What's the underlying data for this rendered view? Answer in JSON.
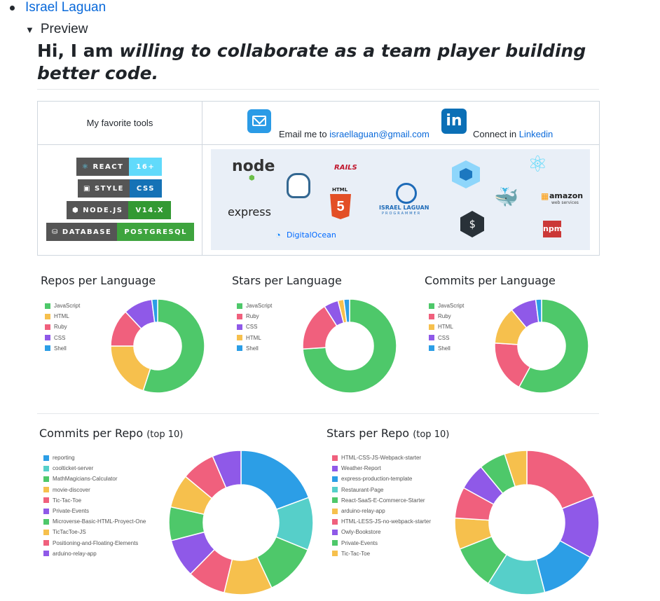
{
  "nav": {
    "profile_link": "Israel Laguan",
    "preview_label": "Preview"
  },
  "hero": {
    "prefix": "Hi, I am ",
    "emphasis": "willing to collaborate as a team player building better code."
  },
  "tools": {
    "favorite_label": "My favorite tools",
    "email_prefix": "Email me to ",
    "email": "israellaguan@gmail.com",
    "linkedin_prefix": "Connect in ",
    "linkedin": "Linkedin",
    "badges": [
      {
        "label": "REACT",
        "value": "16+",
        "color": "#61dafb"
      },
      {
        "label": "STYLE",
        "value": "CSS",
        "color": "#1572b6"
      },
      {
        "label": "NODE.JS",
        "value": "V14.X",
        "color": "#339933"
      },
      {
        "label": "DATABASE",
        "value": "POSTGRESQL",
        "color": "#3ea43e"
      }
    ],
    "logos": [
      "node",
      "postgresql",
      "rails",
      "html5",
      "express",
      "digitalocean",
      "israel laguan programmer",
      "webpack",
      "docker",
      "bash",
      "react",
      "amazon web services",
      "npm"
    ],
    "logo_texts": {
      "node": "node",
      "rails": "RAILS",
      "html": "HTML",
      "express": "express",
      "digitalocean": "DigitalOcean",
      "brand": "ISRAEL LAGUAN",
      "brand_sub": "PROGRAMMER",
      "amazon": "amazon",
      "amazon_sub": "web services",
      "npm": "npm"
    }
  },
  "chart_data": [
    {
      "type": "pie",
      "donut": true,
      "title": "Repos per Language",
      "categories": [
        "JavaScript",
        "HTML",
        "Ruby",
        "CSS",
        "Shell"
      ],
      "values": [
        55,
        20,
        13,
        10,
        2
      ],
      "colors": [
        "#4ec86a",
        "#f6c04d",
        "#f0607d",
        "#8f59e8",
        "#2c9ee6"
      ]
    },
    {
      "type": "pie",
      "donut": true,
      "title": "Stars per Language",
      "categories": [
        "JavaScript",
        "Ruby",
        "CSS",
        "HTML",
        "Shell"
      ],
      "values": [
        74,
        17,
        5,
        2,
        2
      ],
      "colors": [
        "#4ec86a",
        "#f0607d",
        "#8f59e8",
        "#f6c04d",
        "#2c9ee6"
      ]
    },
    {
      "type": "pie",
      "donut": true,
      "title": "Commits per Language",
      "categories": [
        "JavaScript",
        "Ruby",
        "HTML",
        "CSS",
        "Shell"
      ],
      "values": [
        58,
        18,
        13,
        9,
        2
      ],
      "colors": [
        "#4ec86a",
        "#f0607d",
        "#f6c04d",
        "#8f59e8",
        "#2c9ee6"
      ]
    },
    {
      "type": "pie",
      "donut": true,
      "title": "Commits per Repo",
      "title_suffix": "(top 10)",
      "categories": [
        "reporting",
        "coolticket-server",
        "MathMagicians-Calculator",
        "movie-discover",
        "Tic-Tac-Toe",
        "Private-Events",
        "Microverse-Basic-HTML-Proyect-One",
        "TicTacToe-JS",
        "Positioning-and-Floating-Elements",
        "arduino-relay-app"
      ],
      "values": [
        18,
        11,
        11,
        10,
        8,
        8,
        7,
        7,
        7,
        6
      ],
      "colors": [
        "#2c9ee6",
        "#56cfc9",
        "#4ec86a",
        "#f6c04d",
        "#f0607d",
        "#8f59e8",
        "#4ec86a",
        "#f6c04d",
        "#f0607d",
        "#8f59e8"
      ]
    },
    {
      "type": "pie",
      "donut": true,
      "title": "Stars per Repo",
      "title_suffix": "(top 10)",
      "categories": [
        "HTML-CSS-JS-Webpack-starter",
        "Weather-Report",
        "express-production-template",
        "Restaurant-Page",
        "React-SaaS-E-Commerce-Starter",
        "arduino-relay-app",
        "HTML-LESS-JS-no-webpack-starter",
        "Owly-Bookstore",
        "Private-Events",
        "Tic-Tac-Toe"
      ],
      "values": [
        19,
        14,
        13,
        13,
        10,
        7,
        7,
        6,
        6,
        5
      ],
      "colors": [
        "#f0607d",
        "#8f59e8",
        "#2c9ee6",
        "#56cfc9",
        "#4ec86a",
        "#f6c04d",
        "#f0607d",
        "#8f59e8",
        "#4ec86a",
        "#f6c04d"
      ]
    }
  ]
}
